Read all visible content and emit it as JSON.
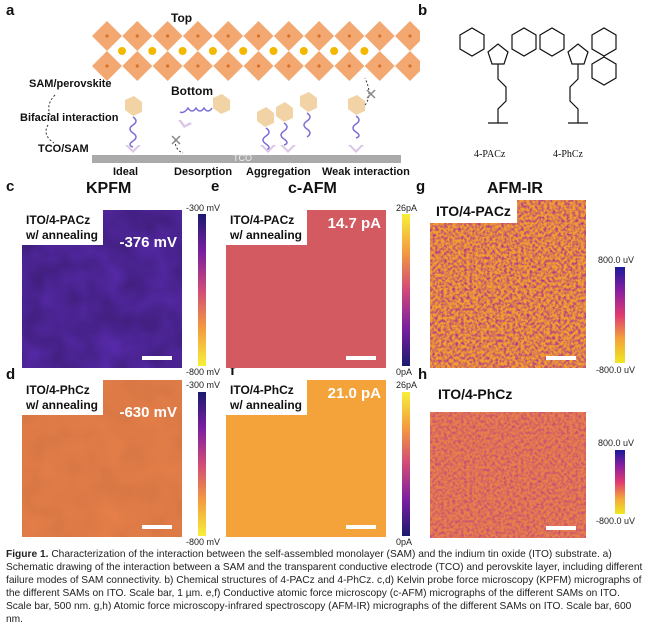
{
  "panel_letters": {
    "a": "a",
    "b": "b",
    "c": "c",
    "d": "d",
    "e": "e",
    "f": "f",
    "g": "g",
    "h": "h"
  },
  "panel_a": {
    "top": "Top",
    "bottom": "Bottom",
    "sam_perovskite": "SAM/perovskite",
    "bifacial": "Bifacial interaction",
    "tco_sam": "TCO/SAM",
    "tco": "TCO",
    "modes": [
      "Ideal",
      "Desorption",
      "Aggregation",
      "Weak interaction"
    ]
  },
  "panel_b": {
    "mol1": "4-PACz",
    "mol2": "4-PhCz"
  },
  "titles": {
    "kpfm": "KPFM",
    "cafm": "c-AFM",
    "afmir": "AFM-IR"
  },
  "kpfm": {
    "c": {
      "sample": "ITO/4-PACz",
      "cond": "w/ annealing",
      "value": "-376 mV",
      "color": "#5a2bb0"
    },
    "d": {
      "sample": "ITO/4-PhCz",
      "cond": "w/ annealing",
      "value": "-630 mV",
      "color": "#e8804a"
    },
    "cbar_max": "-300 mV",
    "cbar_min": "-800 mV"
  },
  "cafm": {
    "e": {
      "sample": "ITO/4-PACz",
      "cond": "w/ annealing",
      "value": "14.7 pA",
      "color": "#d45a62"
    },
    "f": {
      "sample": "ITO/4-PhCz",
      "cond": "w/ annealing",
      "value": "21.0 pA",
      "color": "#f3a33a"
    },
    "cbar_max": "26pA",
    "cbar_min": "0pA"
  },
  "afmir": {
    "g": {
      "sample": "ITO/4-PACz"
    },
    "h": {
      "sample": "ITO/4-PhCz"
    },
    "cbar_max": "800.0 uV",
    "cbar_min": "-800.0 uV"
  },
  "caption": {
    "label": "Figure 1.",
    "text": "Characterization of the interaction between the self-assembled monolayer (SAM) and the indium tin oxide (ITO) substrate. a) Schematic drawing of the interaction between a SAM and the transparent conductive electrode (TCO) and perovskite layer, including different failure modes of SAM connectivity. b) Chemical structures of 4-PACz and 4-PhCz. c,d) Kelvin probe force microscopy (KPFM) micrographs of the different SAMs on ITO. Scale bar, 1 µm. e,f) Conductive atomic force microscopy (c-AFM) micrographs of the different SAMs on ITO. Scale bar, 500 nm. g,h) Atomic force microscopy-infrared spectroscopy (AFM-IR) micrographs of the different SAMs on ITO. Scale bar, 600 nm."
  }
}
